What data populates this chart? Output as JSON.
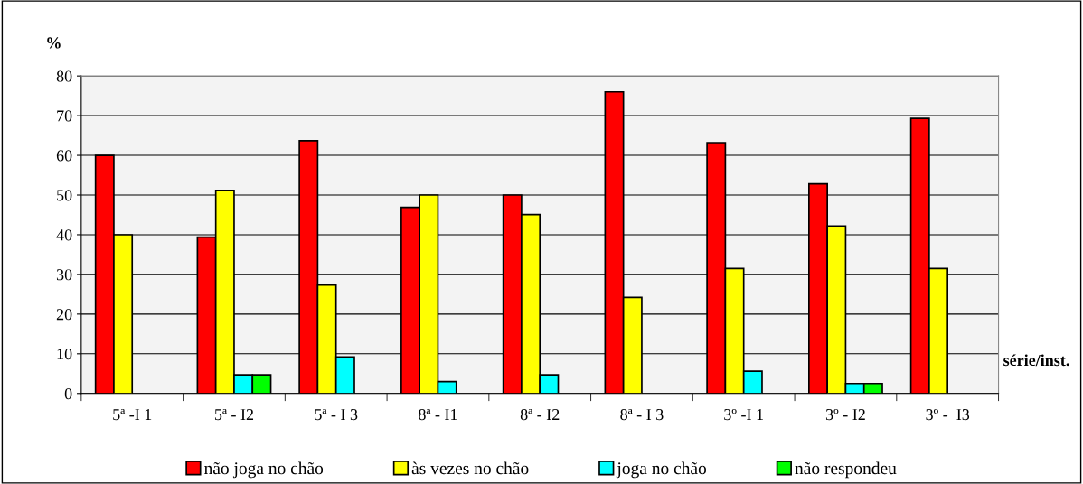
{
  "chart_data": {
    "type": "bar",
    "ylabel": "%",
    "xlabel": "série/inst.",
    "categories": [
      "5ª -I 1",
      "5ª - I2",
      "5ª - I 3",
      "8ª - I1",
      "8ª - I2",
      "8ª - I 3",
      "3º -I 1",
      "3º - I2",
      "3º -  I3"
    ],
    "series": [
      {
        "name": "não joga no chão",
        "color": "#ff0000",
        "values": [
          60,
          39.4,
          63.7,
          46.9,
          50,
          76,
          63.2,
          52.8,
          69.3
        ]
      },
      {
        "name": "às vezes no chão",
        "color": "#ffff00",
        "values": [
          40,
          51.2,
          27.3,
          50,
          45.1,
          24.2,
          31.5,
          42.2,
          31.5
        ]
      },
      {
        "name": "joga no chão",
        "color": "#00ffff",
        "values": [
          null,
          4.7,
          9.2,
          3,
          4.7,
          null,
          5.6,
          2.5,
          null
        ]
      },
      {
        "name": "não respondeu",
        "color": "#00ff00",
        "values": [
          null,
          4.7,
          null,
          null,
          null,
          null,
          null,
          2.5,
          null
        ]
      }
    ],
    "ylim": [
      0,
      80
    ],
    "yticks": [
      0,
      10,
      20,
      30,
      40,
      50,
      60,
      70,
      80
    ],
    "grid": "y",
    "legend": "bottom"
  }
}
